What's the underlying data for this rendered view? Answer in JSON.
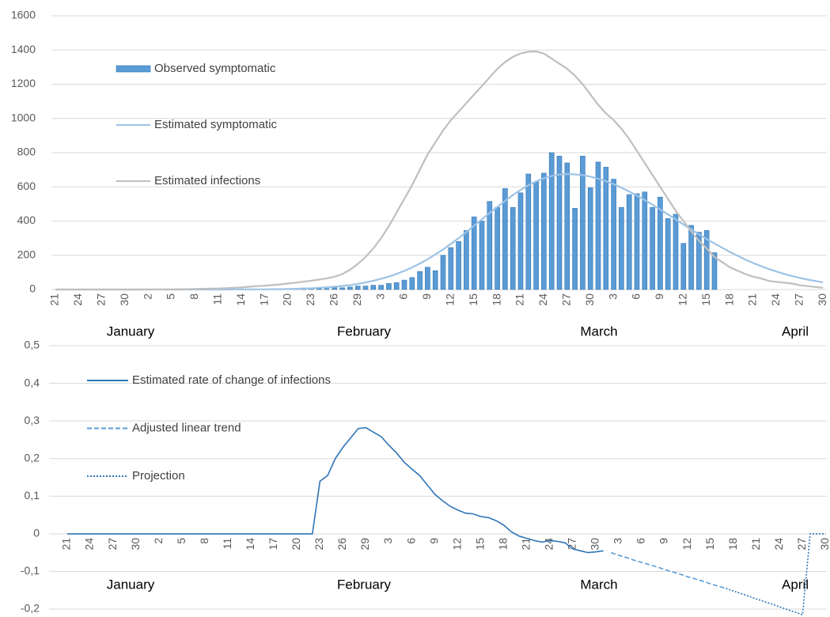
{
  "chart_data": [
    {
      "type": "combo",
      "categories": [
        "21",
        null,
        null,
        "24",
        null,
        null,
        "27",
        null,
        null,
        "30",
        null,
        null,
        "2",
        null,
        null,
        "5",
        null,
        null,
        "8",
        null,
        null,
        "11",
        null,
        null,
        "14",
        null,
        null,
        "17",
        null,
        null,
        "20",
        null,
        null,
        "23",
        null,
        null,
        "26",
        null,
        null,
        "29",
        null,
        null,
        "3",
        null,
        null,
        "6",
        null,
        null,
        "9",
        null,
        null,
        "12",
        null,
        null,
        "15",
        null,
        null,
        "18",
        null,
        null,
        "21",
        null,
        null,
        "24",
        null,
        null,
        "27",
        null,
        null,
        "30",
        null,
        null,
        "3",
        null,
        null,
        "6",
        null,
        null,
        "9",
        null,
        null,
        "12",
        null,
        null,
        "15",
        null,
        null,
        "18",
        null,
        null,
        "21",
        null,
        null,
        "24",
        null,
        null,
        "27",
        null,
        null,
        "30"
      ],
      "month_labels": [
        "January",
        "February",
        "March",
        "April"
      ],
      "ylim": [
        0,
        1600
      ],
      "yticks": [
        0,
        200,
        400,
        600,
        800,
        1000,
        1200,
        1400,
        1600
      ],
      "grid": true,
      "legend": "upper-left",
      "series": [
        {
          "name": "Observed symptomatic",
          "type": "bar",
          "color": "#5b9bd5",
          "values": [
            null,
            null,
            null,
            null,
            null,
            null,
            null,
            null,
            null,
            null,
            null,
            null,
            null,
            null,
            null,
            null,
            null,
            null,
            null,
            null,
            null,
            null,
            null,
            null,
            null,
            null,
            null,
            1,
            2,
            2,
            3,
            3,
            4,
            4,
            5,
            5,
            10,
            10,
            15,
            20,
            20,
            25,
            25,
            35,
            40,
            55,
            70,
            105,
            130,
            110,
            200,
            245,
            280,
            345,
            425,
            400,
            515,
            480,
            590,
            480,
            565,
            675,
            630,
            680,
            800,
            780,
            740,
            475,
            780,
            595,
            745,
            715,
            645,
            480,
            555,
            560,
            570,
            480,
            540,
            415,
            440,
            270,
            375,
            335,
            345,
            215,
            null,
            null,
            null,
            null,
            null,
            null,
            null,
            null,
            null,
            null,
            null,
            null,
            null,
            null
          ]
        },
        {
          "name": "Estimated symptomatic",
          "type": "line",
          "color": "#9dc3e6",
          "values": [
            0,
            0,
            0,
            0,
            0,
            0,
            0,
            0,
            0,
            0,
            0,
            0,
            0,
            0,
            0,
            0,
            0,
            0,
            0,
            0,
            0,
            0,
            0,
            1,
            1,
            1,
            1,
            1,
            2,
            2,
            3,
            4,
            6,
            7,
            10,
            13,
            16,
            21,
            26,
            33,
            41,
            51,
            63,
            76,
            91,
            109,
            129,
            152,
            177,
            205,
            234,
            267,
            300,
            336,
            373,
            410,
            447,
            483,
            518,
            552,
            582,
            609,
            632,
            650,
            664,
            672,
            675,
            673,
            668,
            660,
            648,
            633,
            616,
            595,
            573,
            549,
            523,
            496,
            468,
            439,
            410,
            380,
            351,
            323,
            295,
            269,
            244,
            219,
            197,
            175,
            155,
            137,
            120,
            105,
            91,
            79,
            68,
            58,
            50,
            42
          ]
        },
        {
          "name": "Estimated infections",
          "type": "line",
          "color": "#bfbfbf",
          "values": [
            0,
            0,
            0,
            0,
            0,
            0,
            0,
            0,
            0,
            0,
            0,
            0,
            1,
            1,
            1,
            1,
            2,
            2,
            3,
            4,
            5,
            6,
            8,
            10,
            12,
            16,
            20,
            22,
            26,
            30,
            35,
            40,
            46,
            52,
            58,
            65,
            75,
            90,
            115,
            150,
            190,
            240,
            300,
            370,
            450,
            530,
            610,
            700,
            790,
            860,
            930,
            990,
            1040,
            1090,
            1140,
            1190,
            1240,
            1290,
            1330,
            1360,
            1380,
            1390,
            1392,
            1380,
            1350,
            1320,
            1290,
            1250,
            1200,
            1140,
            1080,
            1030,
            990,
            940,
            880,
            810,
            740,
            670,
            600,
            530,
            460,
            400,
            340,
            285,
            240,
            190,
            160,
            130,
            110,
            90,
            75,
            65,
            50,
            45,
            40,
            35,
            25,
            20,
            15,
            10
          ]
        }
      ]
    },
    {
      "type": "line",
      "categories": [
        "21",
        null,
        null,
        "24",
        null,
        null,
        "27",
        null,
        null,
        "30",
        null,
        null,
        "2",
        null,
        null,
        "5",
        null,
        null,
        "8",
        null,
        null,
        "11",
        null,
        null,
        "14",
        null,
        null,
        "17",
        null,
        null,
        "20",
        null,
        null,
        "23",
        null,
        null,
        "26",
        null,
        null,
        "29",
        null,
        null,
        "3",
        null,
        null,
        "6",
        null,
        null,
        "9",
        null,
        null,
        "12",
        null,
        null,
        "15",
        null,
        null,
        "18",
        null,
        null,
        "21",
        null,
        null,
        "24",
        null,
        null,
        "27",
        null,
        null,
        "30",
        null,
        null,
        "3",
        null,
        null,
        "6",
        null,
        null,
        "9",
        null,
        null,
        "12",
        null,
        null,
        "15",
        null,
        null,
        "18",
        null,
        null,
        "21",
        null,
        null,
        "24",
        null,
        null,
        "27",
        null,
        null,
        "30"
      ],
      "month_labels": [
        "January",
        "February",
        "March",
        "April"
      ],
      "ylim": [
        -0.2,
        0.5
      ],
      "yticks": [
        {
          "value": -0.2,
          "label": "-0,2"
        },
        {
          "value": -0.1,
          "label": "-0,1"
        },
        0,
        {
          "value": 0.1,
          "label": "0,1"
        },
        {
          "value": 0.2,
          "label": "0,2"
        },
        {
          "value": 0.3,
          "label": "0,3"
        },
        {
          "value": 0.4,
          "label": "0,4"
        },
        {
          "value": 0.5,
          "label": "0,5"
        }
      ],
      "grid": true,
      "legend": "upper-left",
      "series": [
        {
          "name": "Estimated rate of change of infections",
          "style": "solid",
          "color": "#2e75b6",
          "values": [
            0,
            0,
            0,
            0,
            0,
            0,
            0,
            0,
            0,
            0,
            0,
            0,
            0,
            0,
            0,
            0,
            0,
            0,
            0,
            0,
            0,
            0,
            0,
            0,
            0,
            0,
            0,
            0,
            0,
            0,
            0,
            0,
            0,
            0.14,
            0.155,
            0.2,
            0.23,
            0.255,
            0.28,
            0.282,
            0.27,
            0.258,
            0.235,
            0.215,
            0.19,
            0.172,
            0.155,
            0.13,
            0.105,
            0.088,
            0.073,
            0.063,
            0.055,
            0.053,
            0.046,
            0.043,
            0.035,
            0.023,
            0.005,
            -0.006,
            -0.012,
            -0.018,
            -0.022,
            -0.018,
            -0.02,
            -0.024,
            -0.04,
            -0.045,
            -0.05,
            -0.048,
            -0.045,
            null,
            null,
            null,
            null,
            null,
            null,
            null,
            null,
            null,
            null,
            null,
            null,
            null,
            null,
            null,
            null,
            null,
            null,
            null,
            null,
            null,
            null,
            null,
            null,
            null,
            null,
            null,
            null,
            null
          ]
        },
        {
          "name": "Adjusted linear trend",
          "style": "dashed",
          "color": "#5b9bd5",
          "values": [
            null,
            null,
            null,
            null,
            null,
            null,
            null,
            null,
            null,
            null,
            null,
            null,
            null,
            null,
            null,
            null,
            null,
            null,
            null,
            null,
            null,
            null,
            null,
            null,
            null,
            null,
            null,
            null,
            null,
            null,
            null,
            null,
            null,
            null,
            null,
            null,
            null,
            null,
            null,
            null,
            null,
            null,
            null,
            null,
            null,
            null,
            null,
            null,
            null,
            null,
            null,
            null,
            null,
            null,
            null,
            null,
            null,
            null,
            null,
            null,
            null,
            null,
            null,
            null,
            null,
            null,
            null,
            null,
            null,
            null,
            null,
            -0.05,
            -0.057,
            -0.063,
            -0.07,
            -0.076,
            -0.082,
            -0.088,
            -0.095,
            -0.101,
            -0.107,
            -0.114,
            -0.12,
            -0.126,
            -0.133,
            -0.139,
            -0.145,
            null,
            null,
            null,
            null,
            null,
            null,
            null,
            null,
            null,
            null,
            null,
            null,
            null
          ]
        },
        {
          "name": "Projection",
          "style": "dotted",
          "color": "#2e75b6",
          "values": [
            null,
            null,
            null,
            null,
            null,
            null,
            null,
            null,
            null,
            null,
            null,
            null,
            null,
            null,
            null,
            null,
            null,
            null,
            null,
            null,
            null,
            null,
            null,
            null,
            null,
            null,
            null,
            null,
            null,
            null,
            null,
            null,
            null,
            null,
            null,
            null,
            null,
            null,
            null,
            null,
            null,
            null,
            null,
            null,
            null,
            null,
            null,
            null,
            null,
            null,
            null,
            null,
            null,
            null,
            null,
            null,
            null,
            null,
            null,
            null,
            null,
            null,
            null,
            null,
            null,
            null,
            null,
            null,
            null,
            null,
            null,
            null,
            null,
            null,
            null,
            null,
            null,
            null,
            null,
            null,
            null,
            null,
            null,
            null,
            null,
            null,
            -0.145,
            -0.152,
            -0.159,
            -0.166,
            -0.173,
            -0.18,
            -0.187,
            -0.194,
            -0.201,
            -0.208,
            -0.215,
            0,
            0,
            0
          ]
        }
      ]
    }
  ]
}
